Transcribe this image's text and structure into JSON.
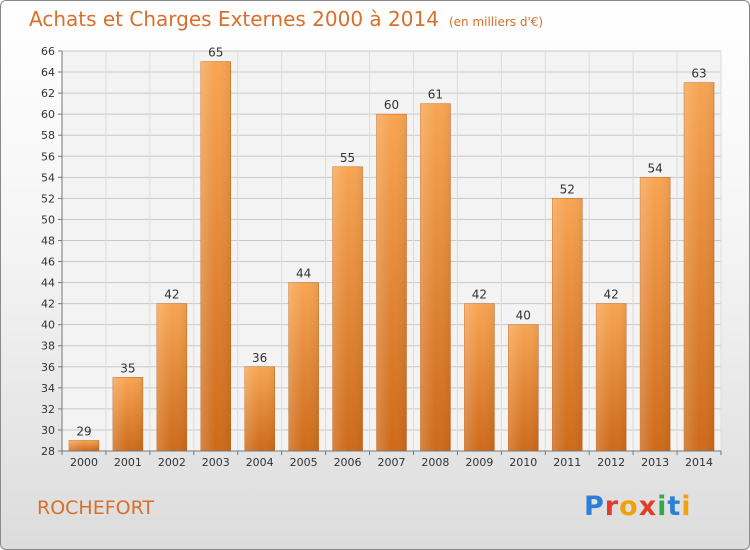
{
  "title": "Achats et Charges Externes 2000 à 2014",
  "unit": "(en milliers d'€)",
  "city": "ROCHEFORT",
  "logo": {
    "text": "Proxiti",
    "letter_colors": [
      "#2b7fd6",
      "#e23c2a",
      "#f2a007",
      "#e23c2a",
      "#31a94a",
      "#2b7fd6",
      "#f2a007"
    ]
  },
  "chart_data": {
    "type": "bar",
    "categories": [
      "2000",
      "2001",
      "2002",
      "2003",
      "2004",
      "2005",
      "2006",
      "2007",
      "2008",
      "2009",
      "2010",
      "2011",
      "2012",
      "2013",
      "2014"
    ],
    "values": [
      29,
      35,
      42,
      65,
      36,
      44,
      55,
      60,
      61,
      42,
      40,
      52,
      42,
      54,
      63
    ],
    "ylim": [
      28,
      66
    ],
    "yticks": [
      28,
      30,
      32,
      34,
      36,
      38,
      40,
      42,
      44,
      46,
      48,
      50,
      52,
      54,
      56,
      58,
      60,
      62,
      64,
      66
    ],
    "grid": true,
    "bar_color": "#f0973f",
    "value_labels": true
  }
}
